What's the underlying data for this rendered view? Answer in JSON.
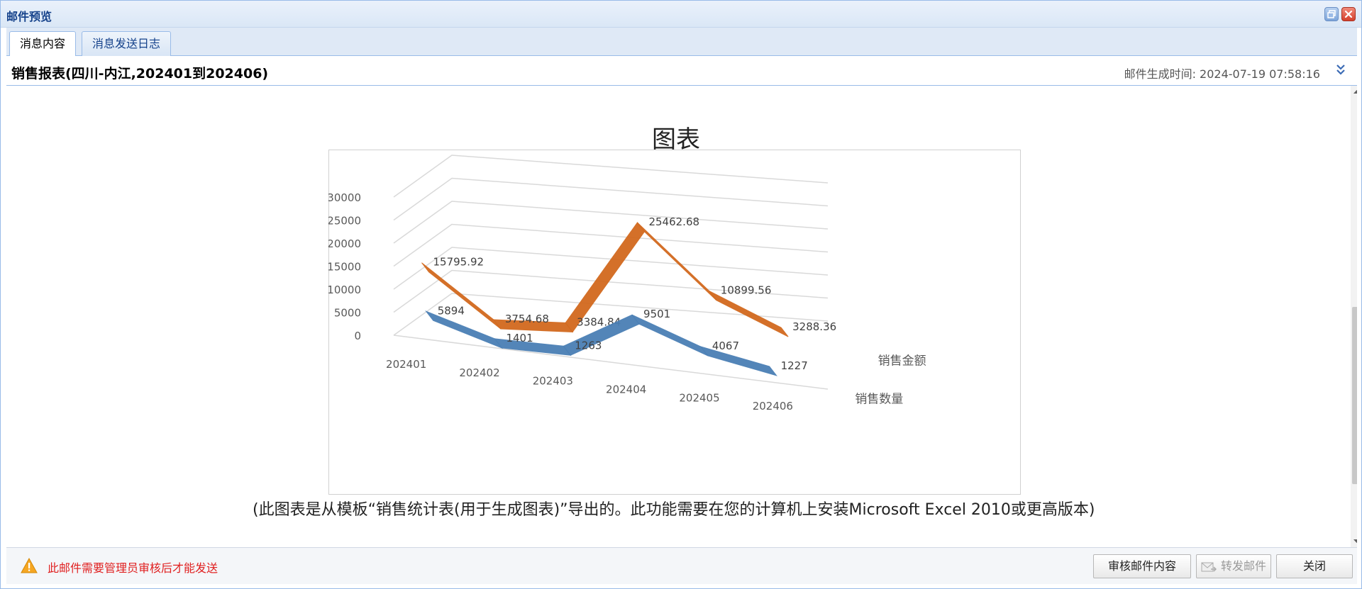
{
  "window": {
    "title": "邮件预览"
  },
  "tabs": [
    {
      "label": "消息内容",
      "active": true
    },
    {
      "label": "消息发送日志",
      "active": false
    }
  ],
  "header": {
    "subject": "销售报表(四川-内江,202401到202406)",
    "generated_time": "邮件生成时间: 2024-07-19 07:58:16"
  },
  "content": {
    "note": "(此图表是从模板“销售统计表(用于生成图表)”导出的。此功能需要在您的计算机上安装Microsoft Excel 2010或更高版本)"
  },
  "chart_data": {
    "type": "line",
    "title": "图表",
    "categories": [
      "202401",
      "202402",
      "202403",
      "202404",
      "202405",
      "202406"
    ],
    "series": [
      {
        "name": "销售金额",
        "values": [
          15795.92,
          3754.68,
          3384.84,
          25462.68,
          10899.56,
          3288.36
        ],
        "labels": [
          "15795.92",
          "3754.68",
          "3384.84",
          "25462.68",
          "10899.56",
          "3288.36"
        ],
        "color": "#d2691e"
      },
      {
        "name": "销售数量",
        "values": [
          5894,
          1401,
          1263,
          9501,
          4067,
          1227
        ],
        "labels": [
          "5894",
          "1401",
          "1263",
          "9501",
          "4067",
          "1227"
        ],
        "color": "#4a7fb5"
      }
    ],
    "yticks": [
      "0",
      "5000",
      "10000",
      "15000",
      "20000",
      "25000",
      "30000"
    ],
    "ylim": [
      0,
      30000
    ],
    "grid": true
  },
  "footer": {
    "warning": "此邮件需要管理员审核后才能发送",
    "review_button": "审核邮件内容",
    "forward_button": "转发邮件",
    "close_button": "关闭"
  },
  "colors": {
    "accent": "#15428b",
    "warning": "#e02020"
  }
}
